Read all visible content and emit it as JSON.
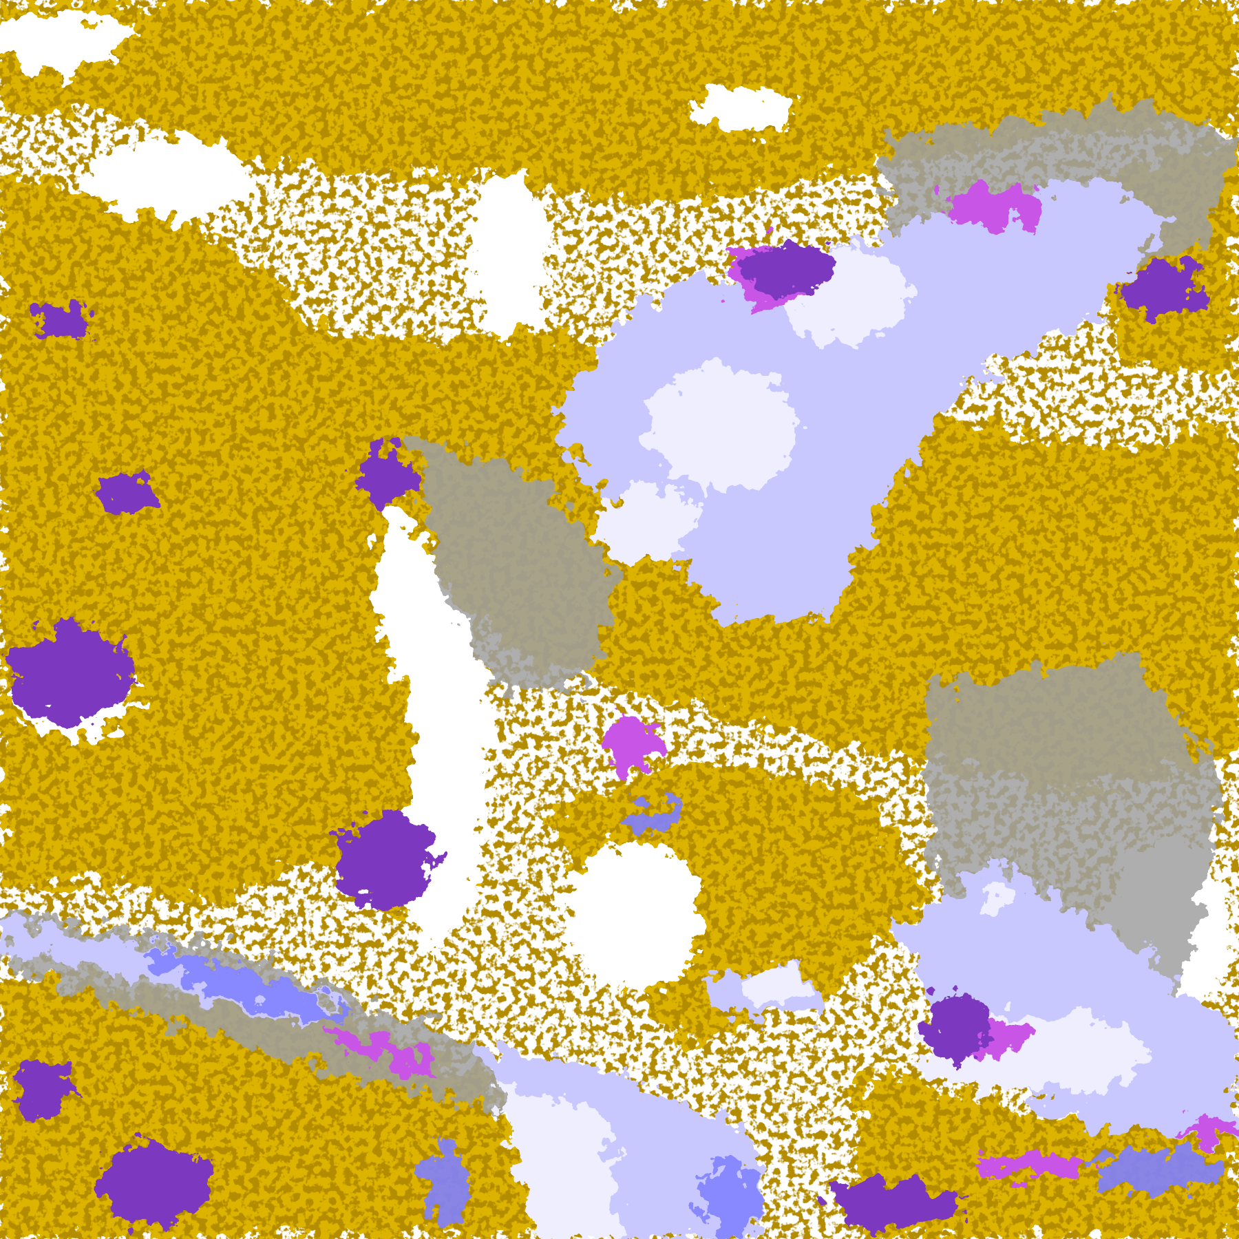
{
  "map": {
    "palette": {
      "background": "#ffffff",
      "gold": "#dcb400",
      "dark_gold": "#b48c00",
      "gray": "#a0a0a0",
      "purple": "#7b38bf",
      "magenta": "#c855e6",
      "periwinkle": "#8080ff",
      "lavender": "#c8c8ff",
      "pale_lavender": "#eeeeff"
    }
  }
}
